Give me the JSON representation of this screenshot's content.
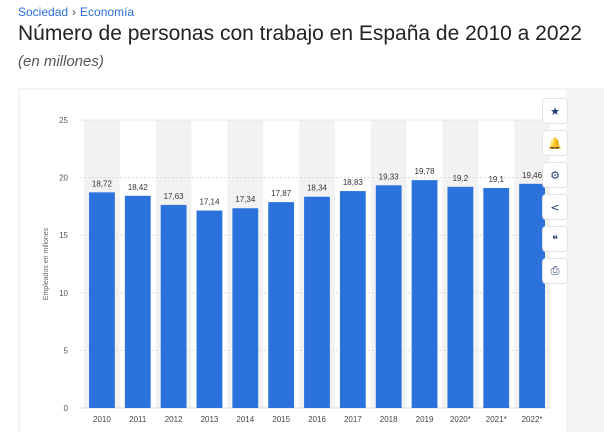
{
  "breadcrumb": {
    "items": [
      "Sociedad",
      "Economía"
    ],
    "separator": "›"
  },
  "header": {
    "title": "Número de personas con trabajo en España de 2010 a 2022",
    "subtitle": "(en millones)"
  },
  "toolbar": {
    "buttons": [
      {
        "name": "star-icon",
        "glyph": "★"
      },
      {
        "name": "bell-icon",
        "glyph": "🔔"
      },
      {
        "name": "gear-icon",
        "glyph": "⚙"
      },
      {
        "name": "share-icon",
        "glyph": "<"
      },
      {
        "name": "quote-icon",
        "glyph": "❝"
      },
      {
        "name": "print-icon",
        "glyph": "⎙"
      }
    ]
  },
  "colors": {
    "bar": "#2b72dc",
    "accent": "#2a6fd6",
    "grid": "#d9d9d9",
    "band": "#f2f2f2"
  },
  "chart_data": {
    "type": "bar",
    "categories": [
      "2010",
      "2011",
      "2012",
      "2013",
      "2014",
      "2015",
      "2016",
      "2017",
      "2018",
      "2019",
      "2020*",
      "2021*",
      "2022*"
    ],
    "values": [
      18.72,
      18.42,
      17.63,
      17.14,
      17.34,
      17.87,
      18.34,
      18.83,
      19.33,
      19.78,
      19.2,
      19.1,
      19.46
    ],
    "value_labels": [
      "18,72",
      "18,42",
      "17,63",
      "17,14",
      "17,34",
      "17,87",
      "18,34",
      "18,83",
      "19,33",
      "19,78",
      "19,2",
      "19,1",
      "19,46"
    ],
    "ylabel": "Empleados en millones",
    "ylim": [
      0,
      25
    ],
    "yticks": [
      0,
      5,
      10,
      15,
      20,
      25
    ],
    "ytick_labels": [
      "0",
      "5",
      "10",
      "15",
      "20",
      "25"
    ],
    "grid": true
  }
}
